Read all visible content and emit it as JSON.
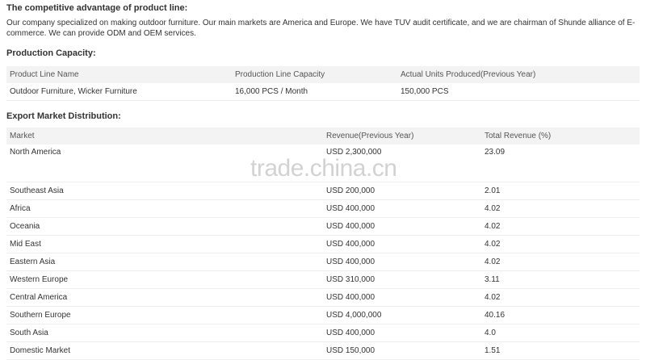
{
  "advantage": {
    "title": "The competitive advantage of product line:",
    "text": "Our company specialized on making outdoor furniture. Our main markets are America and Europe. We have TUV audit certificate, and we are chairman of Shunde alliance of E-commerce. We can provide ODM and OEM services."
  },
  "production": {
    "title": "Production Capacity:",
    "headers": [
      "Product Line Name",
      "Production Line Capacity",
      "Actual Units Produced(Previous Year)"
    ],
    "rows": [
      [
        "Outdoor Furniture, Wicker Furniture",
        "16,000 PCS / Month",
        "150,000 PCS"
      ]
    ]
  },
  "export": {
    "title": "Export Market Distribution:",
    "headers": [
      "Market",
      "Revenue(Previous Year)",
      "Total Revenue (%)"
    ],
    "rows": [
      [
        "North America",
        "USD 2,300,000",
        "23.09"
      ],
      [
        "Southeast Asia",
        "USD 200,000",
        "2.01"
      ],
      [
        "Africa",
        "USD 400,000",
        "4.02"
      ],
      [
        "Oceania",
        "USD 400,000",
        "4.02"
      ],
      [
        "Mid East",
        "USD 400,000",
        "4.02"
      ],
      [
        "Eastern Asia",
        "USD 400,000",
        "4.02"
      ],
      [
        "Western Europe",
        "USD 310,000",
        "3.11"
      ],
      [
        "Central America",
        "USD 400,000",
        "4.02"
      ],
      [
        "Southern Europe",
        "USD 4,000,000",
        "40.16"
      ],
      [
        "South Asia",
        "USD 400,000",
        "4.0"
      ],
      [
        "Domestic Market",
        "USD 150,000",
        "1.51"
      ]
    ]
  },
  "watermark": "trade.china.cn"
}
